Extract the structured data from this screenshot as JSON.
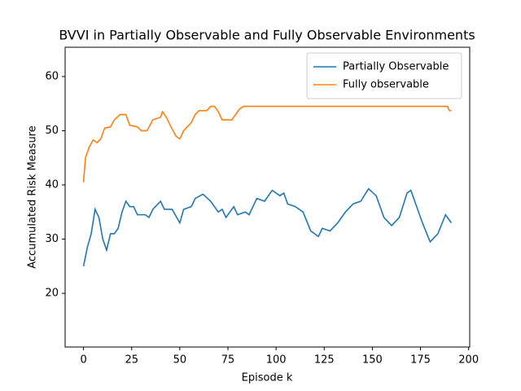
{
  "chart_data": {
    "type": "line",
    "title": "BVVI in Partially Observable and Fully Observable Environments",
    "xlabel": "Episode k",
    "ylabel": "Accumulated Risk Measure",
    "series": [
      {
        "name": "Partially Observable",
        "color": "#1f77b4",
        "x": [
          0,
          2,
          4,
          6,
          8,
          10,
          12,
          14,
          16,
          18,
          20,
          22,
          24,
          26,
          28,
          32,
          34,
          36,
          40,
          42,
          46,
          50,
          52,
          56,
          58,
          62,
          66,
          70,
          72,
          74,
          78,
          80,
          84,
          86,
          90,
          94,
          98,
          102,
          104,
          106,
          110,
          114,
          118,
          122,
          124,
          128,
          132,
          136,
          140,
          144,
          148,
          152,
          156,
          160,
          164,
          168,
          170,
          172,
          176,
          180,
          184,
          188,
          191
        ],
        "values": [
          25,
          28.5,
          31,
          35.5,
          34,
          30,
          28,
          31,
          31,
          32,
          35,
          37,
          36,
          36,
          34.5,
          34.5,
          34,
          35.5,
          37,
          35.5,
          35.5,
          33,
          35.5,
          36,
          37.5,
          38.3,
          37,
          35,
          35.5,
          34,
          36,
          34.5,
          35,
          34.5,
          37.5,
          37,
          39,
          38,
          38.5,
          36.5,
          36,
          35,
          31.5,
          30.5,
          32,
          31.5,
          33,
          35,
          36.5,
          37,
          39.3,
          38,
          34,
          32.5,
          34,
          38.5,
          39,
          37,
          33,
          29.5,
          31,
          34.5,
          33
        ]
      },
      {
        "name": "Fully observable",
        "color": "#ff7f0e",
        "x": [
          0,
          1,
          3,
          5,
          7,
          9,
          11,
          14,
          16,
          19,
          22,
          24,
          28,
          30,
          33,
          36,
          40,
          41,
          43,
          45,
          48,
          50,
          52,
          56,
          58,
          60,
          64,
          66,
          68,
          70,
          72,
          77,
          79,
          81,
          83,
          189,
          190,
          191
        ],
        "values": [
          40.5,
          45,
          47,
          48.3,
          47.8,
          48.5,
          50.5,
          50.7,
          52,
          53,
          53,
          51,
          50.7,
          50,
          50,
          52,
          52.5,
          53.5,
          52.5,
          51,
          49,
          48.5,
          50,
          51.5,
          53,
          53.7,
          53.7,
          54.5,
          54.5,
          53.5,
          52,
          52,
          53,
          54,
          54.5,
          54.5,
          53.7,
          53.7
        ]
      }
    ],
    "xlim": [
      -9.55,
      200.55
    ],
    "xticks": [
      0,
      25,
      50,
      75,
      100,
      125,
      150,
      175,
      200
    ],
    "ylim": [
      10.1,
      65.4
    ],
    "yticks": [
      20,
      30,
      40,
      50,
      60
    ],
    "legend": "upper right"
  }
}
